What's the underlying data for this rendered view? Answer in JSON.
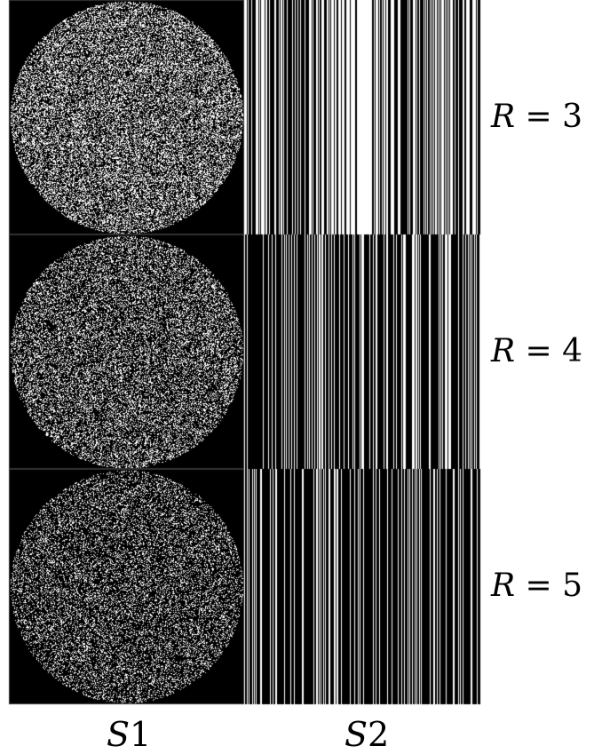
{
  "figure": {
    "columns": [
      {
        "id": "S1",
        "label_var": "S",
        "label_sub": "1",
        "pattern": "random-disk-mask"
      },
      {
        "id": "S2",
        "label_var": "S",
        "label_sub": "2",
        "pattern": "random-column-lines"
      }
    ],
    "rows": [
      {
        "label_var": "R",
        "label_eq": " = ",
        "label_val": "3",
        "s1_density": 0.38,
        "s2_density": 0.42,
        "s2_center_open": true
      },
      {
        "label_var": "R",
        "label_eq": " = ",
        "label_val": "4",
        "s1_density": 0.3,
        "s2_density": 0.3,
        "s2_center_open": false
      },
      {
        "label_var": "R",
        "label_eq": " = ",
        "label_val": "5",
        "s1_density": 0.24,
        "s2_density": 0.24,
        "s2_center_open": false
      }
    ],
    "colors": {
      "background": "#000000",
      "foreground": "#ffffff",
      "page": "#ffffff"
    }
  }
}
